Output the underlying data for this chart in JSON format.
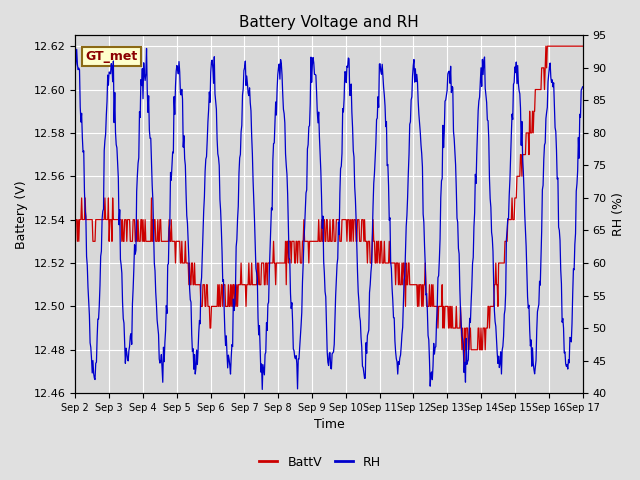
{
  "title": "Battery Voltage and RH",
  "xlabel": "Time",
  "ylabel_left": "Battery (V)",
  "ylabel_right": "RH (%)",
  "label_text": "GT_met",
  "ylim_left": [
    12.46,
    12.625
  ],
  "ylim_right": [
    40,
    95
  ],
  "yticks_left": [
    12.46,
    12.48,
    12.5,
    12.52,
    12.54,
    12.56,
    12.58,
    12.6,
    12.62
  ],
  "yticks_right": [
    40,
    45,
    50,
    55,
    60,
    65,
    70,
    75,
    80,
    85,
    90,
    95
  ],
  "xtick_labels": [
    "Sep 2",
    "Sep 3",
    "Sep 4",
    "Sep 5",
    "Sep 6",
    "Sep 7",
    "Sep 8",
    "Sep 9",
    "Sep 10",
    "Sep 11",
    "Sep 12",
    "Sep 13",
    "Sep 14",
    "Sep 15",
    "Sep 16",
    "Sep 17"
  ],
  "bg_color": "#e0e0e0",
  "plot_bg_color": "#d8d8d8",
  "grid_color": "#ffffff",
  "battv_color": "#cc0000",
  "rh_color": "#0000cc",
  "legend_battv": "BattV",
  "legend_rh": "RH",
  "label_box_facecolor": "#ffffcc",
  "label_box_edgecolor": "#8b6914",
  "label_text_color": "#8b0000"
}
